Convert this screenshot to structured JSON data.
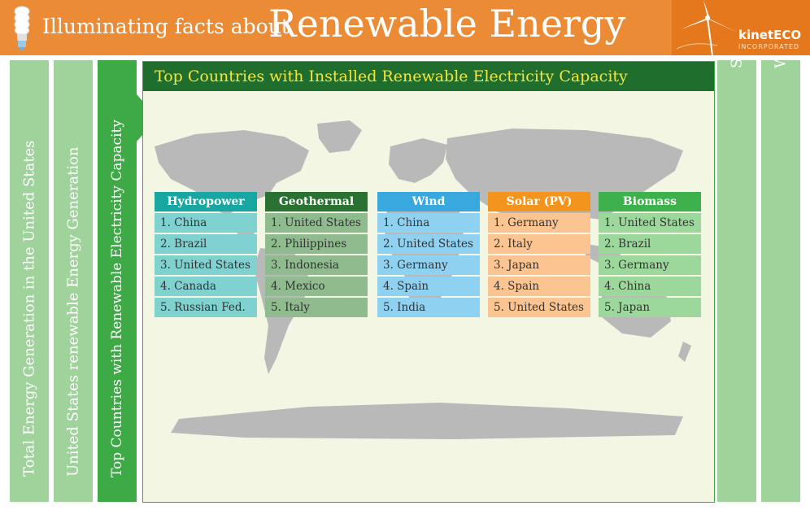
{
  "header": {
    "title_prefix": "Illuminating facts about",
    "title_main": "Renewable Energy",
    "logo_name": "kinetECO",
    "logo_sub": "INCORPORATED",
    "colors": {
      "header": "#ec8b36",
      "logo_bg": "#e5771d"
    }
  },
  "tabs": {
    "left": [
      "Total Energy Generation in the United States",
      "United States renewable Energy Generation",
      "Top Countries with Renewable Electricity Capacity"
    ],
    "right": [
      "Solar Energy",
      "Wind Energy"
    ],
    "active_index": 2
  },
  "panel": {
    "title": "Top Countries with Installed Renewable Electricity Capacity"
  },
  "columns": [
    {
      "name": "Hydropower",
      "head_color": "#18a6a3",
      "item_color": "#7fd2d0",
      "items": [
        "1. China",
        "2. Brazil",
        "3. United States",
        "4. Canada",
        "5. Russian Fed."
      ]
    },
    {
      "name": "Geothermal",
      "head_color": "#2a7232",
      "item_color": "#8fbb8f",
      "items": [
        "1. United States",
        "2. Philippines",
        "3. Indonesia",
        "4. Mexico",
        "5. Italy"
      ]
    },
    {
      "name": "Wind",
      "head_color": "#38a8de",
      "item_color": "#8fd1f1",
      "items": [
        "1. China",
        "2. United States",
        "3. Germany",
        "4. Spain",
        "5. India"
      ]
    },
    {
      "name": "Solar (PV)",
      "head_color": "#f3941f",
      "item_color": "#fbc490",
      "items": [
        "1. Germany",
        "2. Italy",
        "3. Japan",
        "4. Spain",
        "5. United States"
      ]
    },
    {
      "name": "Biomass",
      "head_color": "#3db24c",
      "item_color": "#9cd79c",
      "items": [
        "1. United States",
        "2. Brazil",
        "3. Germany",
        "4. China",
        "5. Japan"
      ]
    }
  ]
}
